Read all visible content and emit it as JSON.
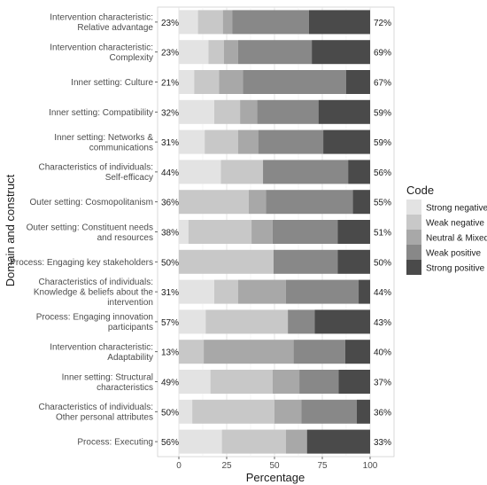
{
  "chart_data": {
    "type": "bar",
    "orientation": "horizontal",
    "stacked": true,
    "xlabel": "Percentage",
    "ylabel": "Domain and construct",
    "xlim": [
      0,
      100
    ],
    "xticks": [
      "0",
      "25",
      "50",
      "75",
      "100"
    ],
    "grid": true,
    "legend": {
      "title": "Code",
      "placement": "right"
    },
    "series": [
      {
        "name": "Strong negative",
        "color": "#e3e3e3"
      },
      {
        "name": "Weak negative",
        "color": "#c8c8c8"
      },
      {
        "name": "Neutral & Mixed",
        "color": "#a8a8a8"
      },
      {
        "name": "Weak positive",
        "color": "#888888"
      },
      {
        "name": "Strong positive",
        "color": "#4a4a4a"
      }
    ],
    "categories": [
      {
        "label": [
          "Intervention characteristic:",
          "Relative advantage"
        ],
        "left_label": "23%",
        "right_label": "72%",
        "values": [
          10,
          13,
          5,
          40,
          32
        ]
      },
      {
        "label": [
          "Intervention characteristic:",
          "Complexity"
        ],
        "left_label": "23%",
        "right_label": "69%",
        "values": [
          15.5,
          8,
          7.5,
          38.5,
          30.5
        ]
      },
      {
        "label": [
          "Inner setting: Culture"
        ],
        "left_label": "21%",
        "right_label": "67%",
        "values": [
          8,
          13,
          12.5,
          54,
          12.5
        ]
      },
      {
        "label": [
          "Inner setting: Compatibility"
        ],
        "left_label": "32%",
        "right_label": "59%",
        "values": [
          18.5,
          13.5,
          9,
          32,
          27
        ]
      },
      {
        "label": [
          "Inner setting: Networks &",
          "communications"
        ],
        "left_label": "31%",
        "right_label": "59%",
        "values": [
          13.5,
          17.5,
          10.5,
          34,
          24.5
        ]
      },
      {
        "label": [
          "Characteristics of individuals:",
          "Self-efficacy"
        ],
        "left_label": "44%",
        "right_label": "56%",
        "values": [
          22,
          22,
          0,
          44.5,
          11.5
        ]
      },
      {
        "label": [
          "Outer setting: Cosmopolitanism"
        ],
        "left_label": "36%",
        "right_label": "55%",
        "values": [
          0,
          36.5,
          9,
          45.5,
          9
        ]
      },
      {
        "label": [
          "Outer setting: Constituent needs",
          "and resources"
        ],
        "left_label": "38%",
        "right_label": "51%",
        "values": [
          5,
          33,
          11,
          34,
          17
        ]
      },
      {
        "label": [
          "Process: Engaging key stakeholders"
        ],
        "left_label": "50%",
        "right_label": "50%",
        "values": [
          0,
          49.5,
          0,
          33.5,
          17
        ]
      },
      {
        "label": [
          "Characteristics of individuals:",
          "Knowledge & beliefs about the",
          "intervention"
        ],
        "left_label": "31%",
        "right_label": "44%",
        "values": [
          18.5,
          12.5,
          25,
          38,
          6
        ]
      },
      {
        "label": [
          "Process: Engaging innovation",
          "participants"
        ],
        "left_label": "57%",
        "right_label": "43%",
        "values": [
          14,
          43,
          0,
          14,
          29
        ]
      },
      {
        "label": [
          "Intervention characteristic:",
          "Adaptability"
        ],
        "left_label": "13%",
        "right_label": "40%",
        "values": [
          0,
          13,
          47,
          27,
          13
        ]
      },
      {
        "label": [
          "Inner setting: Structural",
          "characteristics"
        ],
        "left_label": "49%",
        "right_label": "37%",
        "values": [
          16.5,
          32.5,
          14,
          20.5,
          16.5
        ]
      },
      {
        "label": [
          "Characteristics of individuals:",
          "Other personal attributes"
        ],
        "left_label": "50%",
        "right_label": "36%",
        "values": [
          7,
          43,
          14,
          29,
          7
        ]
      },
      {
        "label": [
          "Process: Executing"
        ],
        "left_label": "56%",
        "right_label": "33%",
        "values": [
          22.5,
          33.5,
          11,
          0,
          33
        ]
      }
    ]
  }
}
